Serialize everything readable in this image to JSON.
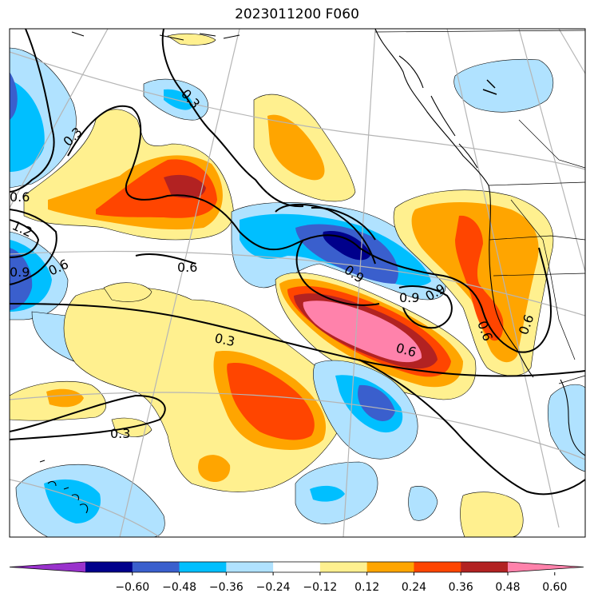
{
  "title": "2023011200 F060",
  "colorbar": {
    "colors": [
      "#9932cc",
      "#00008b",
      "#3a5fcd",
      "#00bfff",
      "#b0e2ff",
      "#ffffff",
      "#fff08f",
      "#ffa500",
      "#ff4500",
      "#b22222",
      "#ff82ab"
    ],
    "ticks": [
      "−0.60",
      "−0.48",
      "−0.36",
      "−0.24",
      "−0.12",
      "0.12",
      "0.24",
      "0.36",
      "0.48",
      "0.60"
    ]
  },
  "contour_labels": [
    "0.3",
    "0.3",
    "0.6",
    "1.2",
    "0.9",
    "0.6",
    "0.6",
    "0.9",
    "0.9",
    "0.9",
    "0.6",
    "0.6",
    "0.3",
    "0.6",
    "0.3"
  ]
}
